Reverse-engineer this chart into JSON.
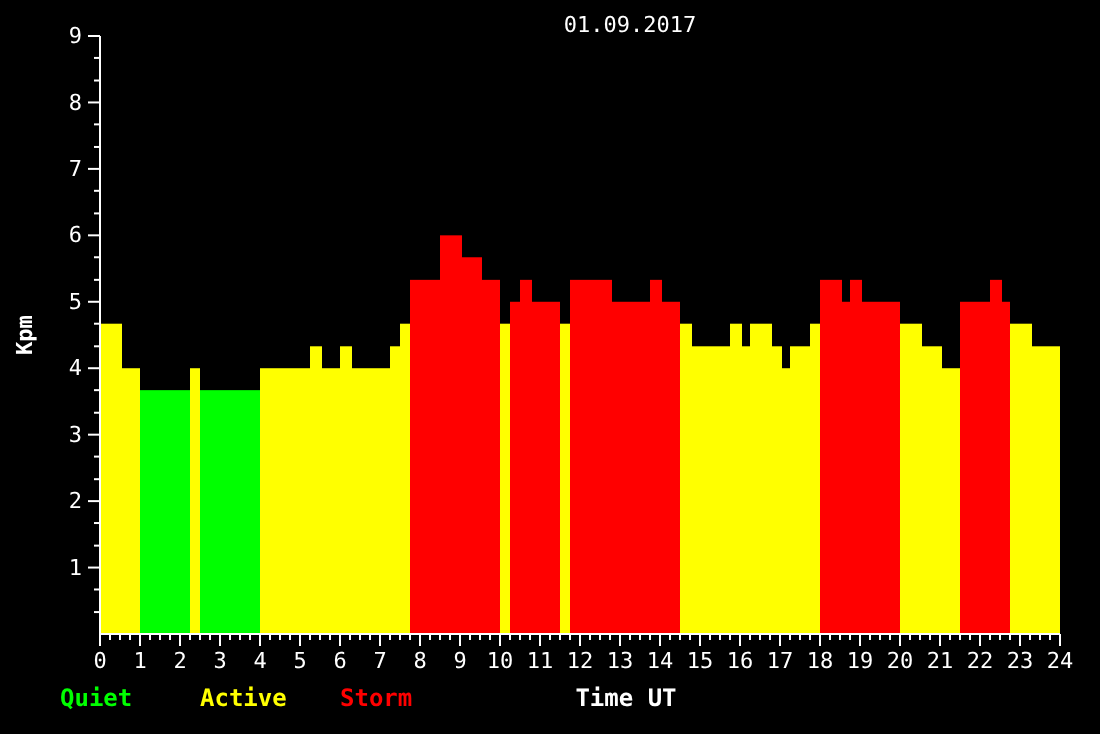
{
  "chart_data": {
    "type": "histogram",
    "title": "01.09.2017",
    "xlabel": "Time UT",
    "ylabel": "Kpm",
    "bins": [
      0,
      0.55,
      1.0,
      2.25,
      2.5,
      4.0,
      5.25,
      5.55,
      6.0,
      6.3,
      7.25,
      7.5,
      7.75,
      8.5,
      9.05,
      9.55,
      10.0,
      10.25,
      10.5,
      10.8,
      11.5,
      11.75,
      12.8,
      13.75,
      14.05,
      14.5,
      14.8,
      15.75,
      16.05,
      16.25,
      16.8,
      17.05,
      17.25,
      17.75,
      18.0,
      18.55,
      18.75,
      19.05,
      20.0,
      20.55,
      21.05,
      21.5,
      22.25,
      22.55,
      22.75,
      23.3,
      24
    ],
    "series": [
      {
        "name": "Quiet",
        "color": "#00ff00",
        "values": [
          null,
          null,
          3.67,
          null,
          3.67,
          null,
          null,
          null,
          null,
          null,
          null,
          null,
          null,
          null,
          null,
          null,
          null,
          null,
          null,
          null,
          null,
          null,
          null,
          null,
          null,
          null,
          null,
          null,
          null,
          null,
          null,
          null,
          null,
          null,
          null,
          null,
          null,
          null,
          null,
          null,
          null,
          null,
          null,
          null,
          null,
          null
        ]
      },
      {
        "name": "Active",
        "color": "#ffff00",
        "values": [
          4.67,
          4.0,
          null,
          4.0,
          null,
          4.0,
          4.33,
          4.0,
          4.33,
          4.0,
          4.33,
          4.67,
          null,
          null,
          null,
          null,
          4.67,
          null,
          null,
          null,
          4.67,
          null,
          null,
          null,
          null,
          4.67,
          4.33,
          4.67,
          4.33,
          4.67,
          4.33,
          4.0,
          4.33,
          4.67,
          null,
          null,
          null,
          null,
          4.67,
          4.33,
          4.0,
          null,
          null,
          null,
          4.67,
          4.33
        ]
      },
      {
        "name": "Storm",
        "color": "#ff0000",
        "values": [
          null,
          null,
          null,
          null,
          null,
          null,
          null,
          null,
          null,
          null,
          null,
          null,
          5.33,
          6.0,
          5.67,
          5.33,
          null,
          5.0,
          5.33,
          5.0,
          null,
          5.33,
          5.0,
          5.33,
          5.0,
          null,
          null,
          null,
          null,
          null,
          null,
          null,
          null,
          null,
          5.33,
          5.0,
          5.33,
          5.0,
          null,
          null,
          null,
          5.0,
          5.33,
          5.0,
          null,
          null
        ]
      }
    ],
    "xlim": [
      0,
      24
    ],
    "ylim": [
      0,
      9
    ],
    "xticks": [
      0,
      {
        "value": 0.25,
        "label": null
      },
      {
        "value": 0.5,
        "label": null
      },
      {
        "value": 0.75,
        "label": null
      },
      1,
      {
        "value": 1.25,
        "label": null
      },
      {
        "value": 1.5,
        "label": null
      },
      {
        "value": 1.75,
        "label": null
      },
      2,
      {
        "value": 2.25,
        "label": null
      },
      {
        "value": 2.5,
        "label": null
      },
      {
        "value": 2.75,
        "label": null
      },
      3,
      {
        "value": 3.25,
        "label": null
      },
      {
        "value": 3.5,
        "label": null
      },
      {
        "value": 3.75,
        "label": null
      },
      4,
      {
        "value": 4.25,
        "label": null
      },
      {
        "value": 4.5,
        "label": null
      },
      {
        "value": 4.75,
        "label": null
      },
      5,
      {
        "value": 5.25,
        "label": null
      },
      {
        "value": 5.5,
        "label": null
      },
      {
        "value": 5.75,
        "label": null
      },
      6,
      {
        "value": 6.25,
        "label": null
      },
      {
        "value": 6.5,
        "label": null
      },
      {
        "value": 6.75,
        "label": null
      },
      7,
      {
        "value": 7.25,
        "label": null
      },
      {
        "value": 7.5,
        "label": null
      },
      {
        "value": 7.75,
        "label": null
      },
      8,
      {
        "value": 8.25,
        "label": null
      },
      {
        "value": 8.5,
        "label": null
      },
      {
        "value": 8.75,
        "label": null
      },
      9,
      {
        "value": 9.25,
        "label": null
      },
      {
        "value": 9.5,
        "label": null
      },
      {
        "value": 9.75,
        "label": null
      },
      10,
      {
        "value": 10.25,
        "label": null
      },
      {
        "value": 10.5,
        "label": null
      },
      {
        "value": 10.75,
        "label": null
      },
      11,
      {
        "value": 11.25,
        "label": null
      },
      {
        "value": 11.5,
        "label": null
      },
      {
        "value": 11.75,
        "label": null
      },
      12,
      {
        "value": 12.25,
        "label": null
      },
      {
        "value": 12.5,
        "label": null
      },
      {
        "value": 12.75,
        "label": null
      },
      13,
      {
        "value": 13.25,
        "label": null
      },
      {
        "value": 13.5,
        "label": null
      },
      {
        "value": 13.75,
        "label": null
      },
      14,
      {
        "value": 14.25,
        "label": null
      },
      {
        "value": 14.5,
        "label": null
      },
      {
        "value": 14.75,
        "label": null
      },
      15,
      {
        "value": 15.25,
        "label": null
      },
      {
        "value": 15.5,
        "label": null
      },
      {
        "value": 15.75,
        "label": null
      },
      16,
      {
        "value": 16.25,
        "label": null
      },
      {
        "value": 16.5,
        "label": null
      },
      {
        "value": 16.75,
        "label": null
      },
      17,
      {
        "value": 17.25,
        "label": null
      },
      {
        "value": 17.5,
        "label": null
      },
      {
        "value": 17.75,
        "label": null
      },
      18,
      {
        "value": 18.25,
        "label": null
      },
      {
        "value": 18.5,
        "label": null
      },
      {
        "value": 18.75,
        "label": null
      },
      19,
      {
        "value": 19.25,
        "label": null
      },
      {
        "value": 19.5,
        "label": null
      },
      {
        "value": 19.75,
        "label": null
      },
      20,
      {
        "value": 20.25,
        "label": null
      },
      {
        "value": 20.5,
        "label": null
      },
      {
        "value": 20.75,
        "label": null
      },
      21,
      {
        "value": 21.25,
        "label": null
      },
      {
        "value": 21.5,
        "label": null
      },
      {
        "value": 21.75,
        "label": null
      },
      22,
      {
        "value": 22.25,
        "label": null
      },
      {
        "value": 22.5,
        "label": null
      },
      {
        "value": 22.75,
        "label": null
      },
      23,
      {
        "value": 23.25,
        "label": null
      },
      {
        "value": 23.5,
        "label": null
      },
      {
        "value": 23.75,
        "label": null
      },
      24
    ],
    "yticks": [
      {
        "value": 0.33,
        "label": null
      },
      {
        "value": 0.67,
        "label": null
      },
      1,
      {
        "value": 1.33,
        "label": null
      },
      {
        "value": 1.67,
        "label": null
      },
      2,
      {
        "value": 2.33,
        "label": null
      },
      {
        "value": 2.67,
        "label": null
      },
      3,
      {
        "value": 3.33,
        "label": null
      },
      {
        "value": 3.67,
        "label": null
      },
      4,
      {
        "value": 4.33,
        "label": null
      },
      {
        "value": 4.67,
        "label": null
      },
      5,
      {
        "value": 5.33,
        "label": null
      },
      {
        "value": 5.67,
        "label": null
      },
      6,
      {
        "value": 6.33,
        "label": null
      },
      {
        "value": 6.67,
        "label": null
      },
      7,
      {
        "value": 7.33,
        "label": null
      },
      {
        "value": 7.67,
        "label": null
      },
      8,
      {
        "value": 8.33,
        "label": null
      },
      {
        "value": 8.67,
        "label": null
      },
      9
    ],
    "legend": "bottom left"
  }
}
